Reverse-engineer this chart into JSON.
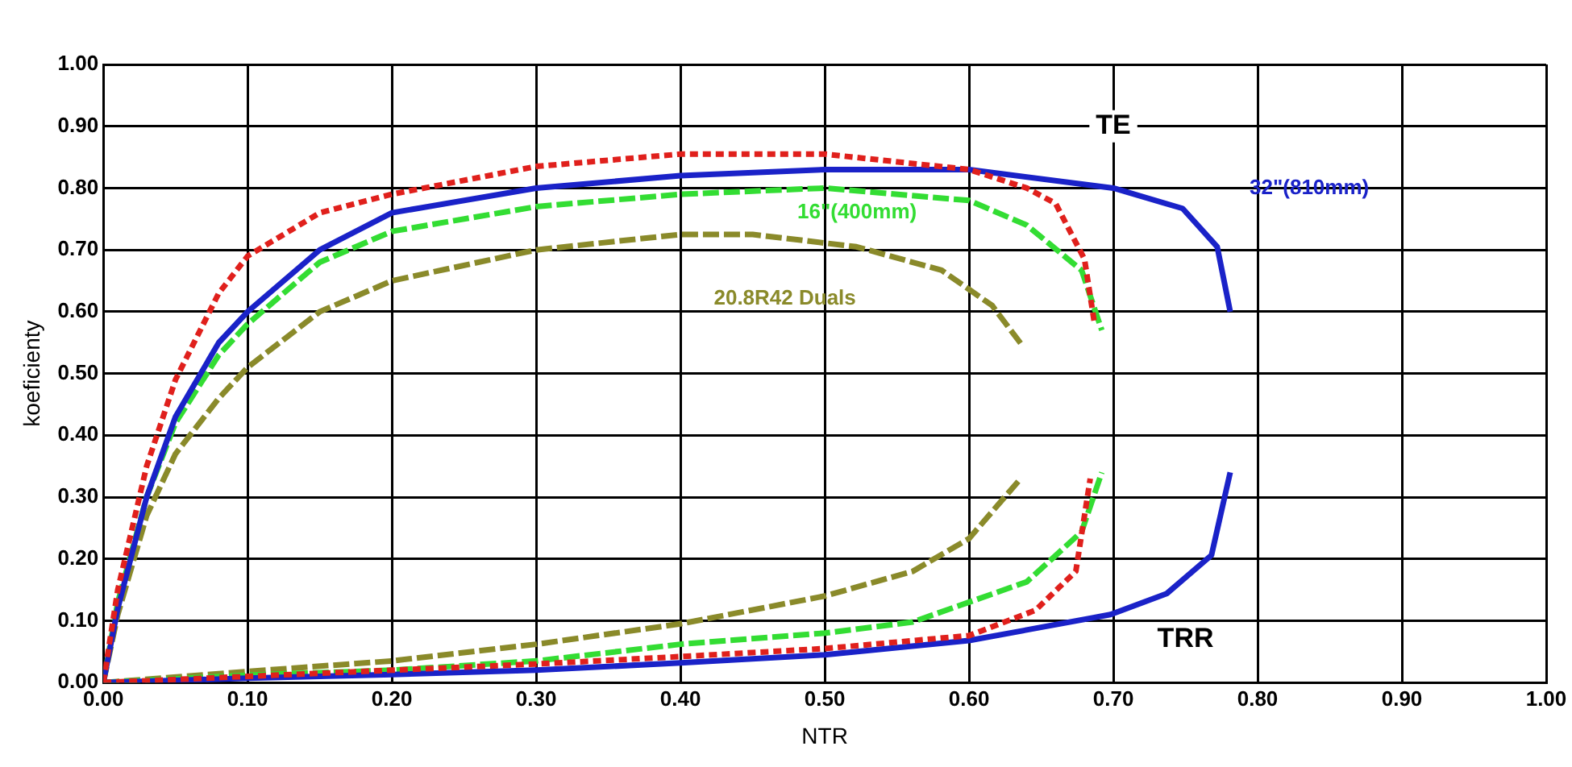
{
  "chart_data": {
    "type": "line",
    "xlabel": "NTR",
    "ylabel": "koeficienty",
    "grid": true,
    "marker": "none",
    "legend": false,
    "xlim": [
      0,
      1
    ],
    "ylim": [
      0,
      1
    ],
    "xticks": [
      {
        "value": 0,
        "label": "0.00"
      },
      {
        "value": 0.1,
        "label": "0.10"
      },
      {
        "value": 0.2,
        "label": "0.20"
      },
      {
        "value": 0.3,
        "label": "0.30"
      },
      {
        "value": 0.4,
        "label": "0.40"
      },
      {
        "value": 0.5,
        "label": "0.50"
      },
      {
        "value": 0.6,
        "label": "0.60"
      },
      {
        "value": 0.7,
        "label": "0.70"
      },
      {
        "value": 0.8,
        "label": "0.80"
      },
      {
        "value": 0.9,
        "label": "0.90"
      },
      {
        "value": 1,
        "label": "1.00"
      }
    ],
    "yticks": [
      {
        "value": 0,
        "label": "0.00"
      },
      {
        "value": 0.1,
        "label": "0.10"
      },
      {
        "value": 0.2,
        "label": "0.20"
      },
      {
        "value": 0.3,
        "label": "0.30"
      },
      {
        "value": 0.4,
        "label": "0.40"
      },
      {
        "value": 0.5,
        "label": "0.50"
      },
      {
        "value": 0.6,
        "label": "0.60"
      },
      {
        "value": 0.7,
        "label": "0.70"
      },
      {
        "value": 0.8,
        "label": "0.80"
      },
      {
        "value": 0.9,
        "label": "0.90"
      },
      {
        "value": 1,
        "label": "1.00"
      }
    ],
    "annotations": [
      "TE",
      "TRR"
    ],
    "series": [
      {
        "color": "#e0201c",
        "line_style": "dotted",
        "x": [
          0,
          0.01,
          0.03,
          0.05,
          0.08,
          0.1,
          0.15,
          0.2,
          0.3,
          0.4,
          0.5,
          0.6,
          0.64,
          0.66,
          0.68,
          0.687
        ],
        "values": [
          0,
          0.15,
          0.35,
          0.49,
          0.63,
          0.69,
          0.76,
          0.79,
          0.835,
          0.855,
          0.855,
          0.83,
          0.8,
          0.775,
          0.685,
          0.58
        ]
      },
      {
        "color": "#e0201c",
        "line_style": "dotted",
        "x": [
          0,
          0.1,
          0.2,
          0.3,
          0.4,
          0.5,
          0.6,
          0.646,
          0.674,
          0.684
        ],
        "values": [
          0,
          0.01,
          0.02,
          0.03,
          0.042,
          0.055,
          0.076,
          0.117,
          0.18,
          0.33
        ]
      },
      {
        "name": "32\"(810mm)",
        "color": "#1a22c8",
        "line_style": "solid",
        "x": [
          0,
          0.01,
          0.03,
          0.05,
          0.08,
          0.1,
          0.15,
          0.2,
          0.3,
          0.4,
          0.5,
          0.6,
          0.7,
          0.748,
          0.772,
          0.781
        ],
        "values": [
          0,
          0.12,
          0.3,
          0.43,
          0.55,
          0.6,
          0.7,
          0.76,
          0.8,
          0.82,
          0.83,
          0.83,
          0.8,
          0.767,
          0.705,
          0.6
        ]
      },
      {
        "color": "#1a22c8",
        "line_style": "solid",
        "x": [
          0,
          0.1,
          0.2,
          0.3,
          0.4,
          0.5,
          0.6,
          0.698,
          0.737,
          0.768,
          0.781
        ],
        "values": [
          0,
          0.007,
          0.013,
          0.02,
          0.032,
          0.045,
          0.068,
          0.11,
          0.144,
          0.206,
          0.34
        ]
      },
      {
        "name": "16\"(400mm)",
        "color": "#33dd33",
        "line_style": "dashed",
        "x": [
          0,
          0.01,
          0.03,
          0.05,
          0.08,
          0.1,
          0.15,
          0.2,
          0.3,
          0.4,
          0.5,
          0.6,
          0.64,
          0.678,
          0.692
        ],
        "values": [
          0,
          0.13,
          0.3,
          0.42,
          0.53,
          0.58,
          0.68,
          0.73,
          0.77,
          0.79,
          0.8,
          0.78,
          0.74,
          0.667,
          0.57
        ]
      },
      {
        "color": "#33dd33",
        "line_style": "dashed",
        "x": [
          0,
          0.1,
          0.2,
          0.3,
          0.4,
          0.5,
          0.561,
          0.64,
          0.678,
          0.692
        ],
        "values": [
          0,
          0.012,
          0.02,
          0.035,
          0.062,
          0.08,
          0.098,
          0.163,
          0.244,
          0.34
        ]
      },
      {
        "name": "20.8R42 Duals",
        "color": "#8a8a2a",
        "line_style": "dashed",
        "x": [
          0,
          0.01,
          0.03,
          0.05,
          0.08,
          0.1,
          0.15,
          0.2,
          0.3,
          0.4,
          0.45,
          0.522,
          0.581,
          0.616,
          0.637
        ],
        "values": [
          0,
          0.11,
          0.27,
          0.37,
          0.46,
          0.51,
          0.6,
          0.65,
          0.7,
          0.725,
          0.725,
          0.705,
          0.667,
          0.61,
          0.545
        ]
      },
      {
        "color": "#8a8a2a",
        "line_style": "dashed",
        "x": [
          0,
          0.1,
          0.2,
          0.3,
          0.4,
          0.5,
          0.561,
          0.6,
          0.635
        ],
        "values": [
          0,
          0.018,
          0.035,
          0.062,
          0.095,
          0.14,
          0.18,
          0.233,
          0.328
        ]
      }
    ]
  }
}
